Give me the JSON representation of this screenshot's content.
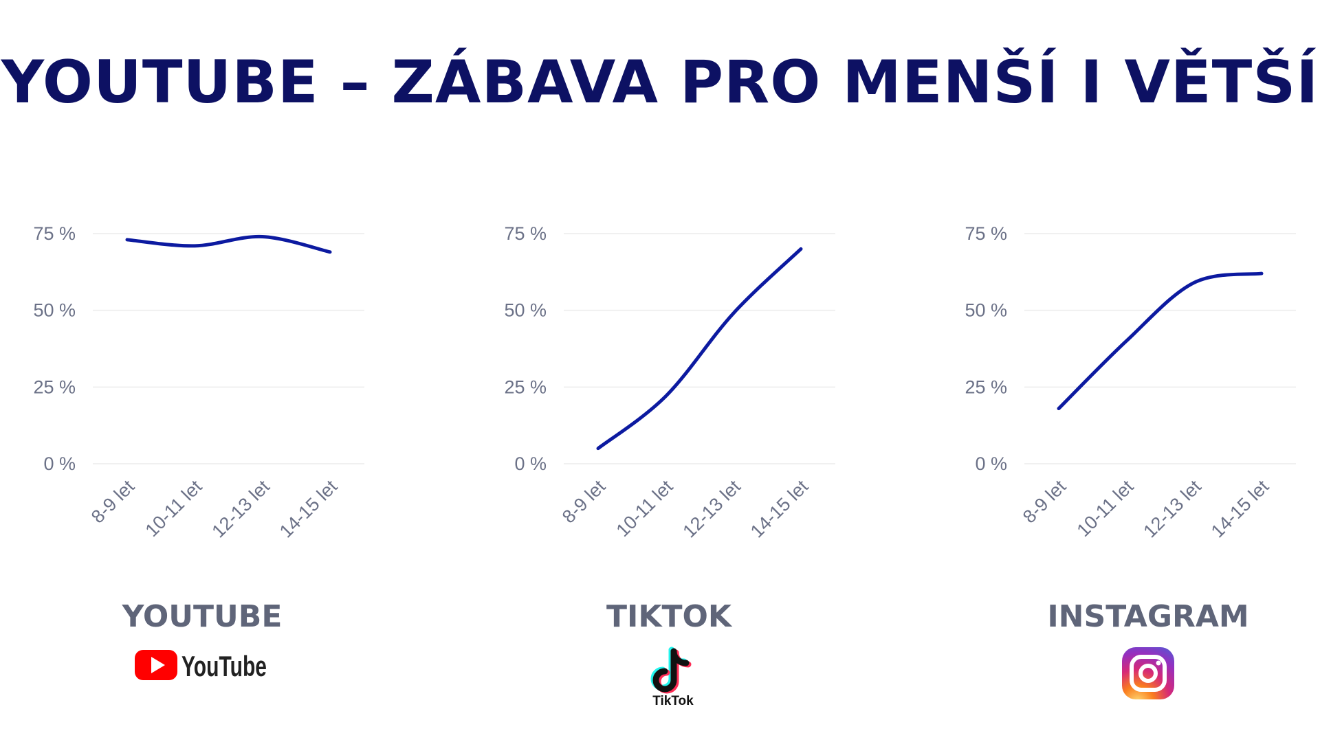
{
  "page": {
    "title": "YOUTUBE – ZÁBAVA PRO MENŠÍ I VĚTŠÍ"
  },
  "colors": {
    "title": "#0d1163",
    "line": "#0c1aa0",
    "panel_title": "#5f6579",
    "tick": "#6b7187",
    "grid": "#ececec"
  },
  "panels": [
    {
      "title": "YOUTUBE",
      "logo_icon": "youtube-logo-icon",
      "logo_text": "YouTube"
    },
    {
      "title": "TIKTOK",
      "logo_icon": "tiktok-logo-icon",
      "logo_text": "TikTok"
    },
    {
      "title": "INSTAGRAM",
      "logo_icon": "instagram-logo-icon"
    }
  ],
  "chart_data": [
    {
      "type": "line",
      "categories": [
        "8-9 let",
        "10-11 let",
        "12-13 let",
        "14-15 let"
      ],
      "values": [
        73,
        71,
        74,
        69
      ],
      "y_ticks": [
        "0 %",
        "25 %",
        "50 %",
        "75 %"
      ],
      "ylim": [
        0,
        75
      ],
      "grid": true,
      "xlabel": "",
      "ylabel": ""
    },
    {
      "type": "line",
      "categories": [
        "8-9 let",
        "10-11 let",
        "12-13 let",
        "14-15 let"
      ],
      "values": [
        5,
        22,
        49,
        70
      ],
      "y_ticks": [
        "0 %",
        "25 %",
        "50 %",
        "75 %"
      ],
      "ylim": [
        0,
        75
      ],
      "grid": true,
      "xlabel": "",
      "ylabel": ""
    },
    {
      "type": "line",
      "categories": [
        "8-9 let",
        "10-11 let",
        "12-13 let",
        "14-15 let"
      ],
      "values": [
        18,
        40,
        59,
        62
      ],
      "y_ticks": [
        "0 %",
        "25 %",
        "50 %",
        "75 %"
      ],
      "ylim": [
        0,
        75
      ],
      "grid": true,
      "xlabel": "",
      "ylabel": ""
    }
  ]
}
